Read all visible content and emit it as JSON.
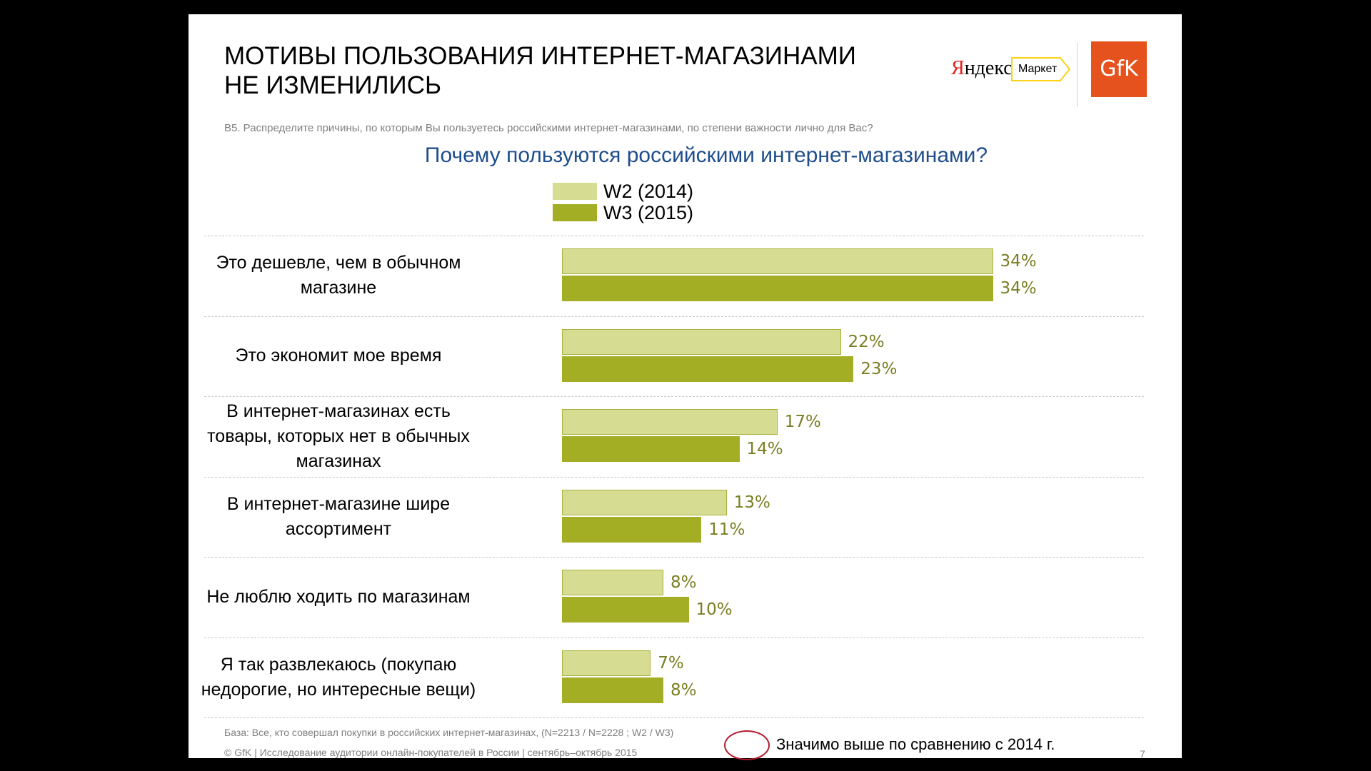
{
  "slide": {
    "title": "МОТИВЫ ПОЛЬЗОВАНИЯ ИНТЕРНЕТ-МАГАЗИНАМИ\nНЕ ИЗМЕНИЛИСЬ",
    "question": "B5. Распределите причины, по которым Вы пользуетесь российскими интернет-магазинами, по степени важности лично для Вас?",
    "footnote_base": "База: Все, кто совершал покупки в российских интернет-магазинах, (N=2213 / N=2228 ; W2 / W3)",
    "footnote_copyright": "© GfK | Исследование аудитории онлайн-покупателей в России | сентябрь–октябрь 2015",
    "significance_note": "Значимо выше по сравнению с 2014 г.",
    "page_number": "7"
  },
  "logos": {
    "yandex_first_letter": "Я",
    "yandex_rest": "ндекс",
    "market": "Маркет",
    "gfk": "GfK"
  },
  "colors": {
    "w2": "#d6dc92",
    "w3": "#a4ae25",
    "value_label": "#7a7e22",
    "chart_title": "#1f4e8c",
    "significance_marker": "#b01d2e"
  },
  "chart_data": {
    "type": "bar",
    "orientation": "horizontal",
    "title": "Почему пользуются российскими интернет-магазинами?",
    "legend_position": "top",
    "grid": false,
    "value_unit": "%",
    "xlim": [
      0,
      45
    ],
    "categories": [
      "Это дешевле, чем в обычном магазине",
      "Это экономит мое время",
      "В интернет-магазинах есть товары, которых нет в обычных магазинах",
      "В интернет-магазине шире ассортимент",
      "Не люблю ходить по магазинам",
      "Я так развлекаюсь (покупаю недорогие, но интересные вещи)"
    ],
    "series": [
      {
        "name": "W2 (2014)",
        "values": [
          34,
          22,
          17,
          13,
          8,
          7
        ]
      },
      {
        "name": "W3 (2015)",
        "values": [
          34,
          23,
          14,
          11,
          10,
          8
        ]
      }
    ]
  }
}
